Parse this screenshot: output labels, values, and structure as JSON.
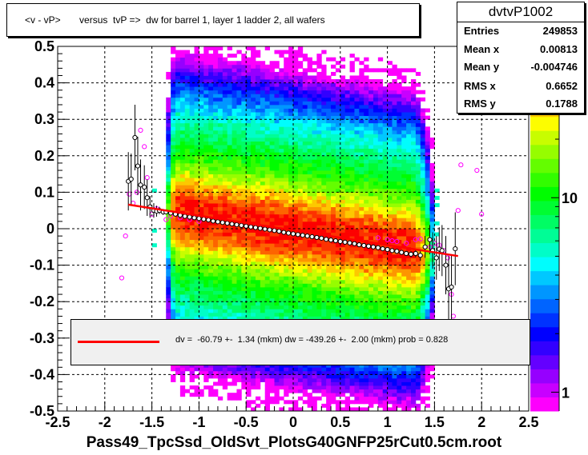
{
  "title": "<v - vP>       versus  tvP =>  dw for barrel 1, layer 1 ladder 2, all wafers",
  "stats": {
    "name": "dvtvP1002",
    "rows": [
      {
        "key": "Entries",
        "value": "249853"
      },
      {
        "key": "Mean x",
        "value": "0.00813"
      },
      {
        "key": "Mean y",
        "value": "-0.004746"
      },
      {
        "key": "RMS x",
        "value": "0.6652"
      },
      {
        "key": "RMS y",
        "value": "0.1788"
      }
    ]
  },
  "fit_legend": "dv =  -60.79 +-  1.34 (mkm) dw = -439.26 +-  2.00 (mkm) prob = 0.828",
  "xlabel": "Pass49_TpcSsd_OldSvt_PlotsG40GNFP25rCut0.5cm.root",
  "colors": {
    "fit_line": "#ff0000",
    "profile_black": "#000000",
    "profile_magenta": "#ff00ff"
  },
  "chart_data": {
    "type": "heatmap",
    "xlim": [
      -2.5,
      2.5
    ],
    "ylim": [
      -0.5,
      0.5
    ],
    "xticks": [
      "-2.5",
      "-2",
      "-1.5",
      "-1",
      "-0.5",
      "0",
      "0.5",
      "1",
      "1.5",
      "2",
      "2.5"
    ],
    "yticks": [
      "-0.5",
      "-0.4",
      "-0.3",
      "-0.2",
      "-0.1",
      "0",
      "0.1",
      "0.2",
      "0.3",
      "0.4",
      "0.5"
    ],
    "grid": true,
    "z_scale": "log",
    "z_ticks": [
      "1",
      "10"
    ],
    "z_range": [
      0.8,
      60
    ],
    "fit_line": {
      "x": [
        -1.75,
        1.75
      ],
      "y": [
        0.066,
        -0.075
      ]
    },
    "profile_black": {
      "x": [
        -1.75,
        -1.72,
        -1.68,
        -1.65,
        -1.62,
        -1.58,
        -1.55,
        -1.52,
        -1.48,
        -1.45,
        -1.42,
        -1.38,
        -1.35,
        -1.3,
        -1.25,
        -1.2,
        -1.15,
        -1.1,
        -1.05,
        -1.0,
        -0.95,
        -0.9,
        -0.85,
        -0.8,
        -0.75,
        -0.7,
        -0.65,
        -0.6,
        -0.55,
        -0.5,
        -0.45,
        -0.4,
        -0.35,
        -0.3,
        -0.25,
        -0.2,
        -0.15,
        -0.1,
        -0.05,
        0,
        0.05,
        0.1,
        0.15,
        0.2,
        0.25,
        0.3,
        0.35,
        0.4,
        0.45,
        0.5,
        0.55,
        0.6,
        0.65,
        0.7,
        0.75,
        0.8,
        0.85,
        0.9,
        0.95,
        1.0,
        1.05,
        1.1,
        1.15,
        1.2,
        1.25,
        1.3,
        1.35,
        1.4,
        1.45,
        1.48,
        1.52,
        1.55,
        1.58,
        1.62,
        1.65,
        1.68,
        1.72
      ],
      "y": [
        0.13,
        0.136,
        0.25,
        0.172,
        0.12,
        0.114,
        0.085,
        0.06,
        0.05,
        0.048,
        0.05,
        0.046,
        0.046,
        0.043,
        0.04,
        0.037,
        0.034,
        0.032,
        0.03,
        0.028,
        0.026,
        0.024,
        0.021,
        0.019,
        0.017,
        0.015,
        0.013,
        0.011,
        0.009,
        0.007,
        0.005,
        0.003,
        0.001,
        -0.001,
        -0.003,
        -0.005,
        -0.007,
        -0.01,
        -0.012,
        -0.014,
        -0.016,
        -0.018,
        -0.02,
        -0.022,
        -0.024,
        -0.026,
        -0.029,
        -0.031,
        -0.033,
        -0.035,
        -0.037,
        -0.039,
        -0.041,
        -0.044,
        -0.046,
        -0.048,
        -0.05,
        -0.052,
        -0.055,
        -0.057,
        -0.06,
        -0.062,
        -0.065,
        -0.068,
        -0.07,
        -0.068,
        -0.073,
        -0.05,
        -0.03,
        -0.06,
        -0.08,
        -0.056,
        -0.06,
        -0.1,
        -0.165,
        -0.16,
        -0.055
      ],
      "err": [
        0.08,
        0.07,
        0.09,
        0.08,
        0.07,
        0.06,
        0.05,
        0.03,
        0.02,
        0.015,
        0.01,
        0.008,
        0.006,
        0.004,
        0.003,
        0.003,
        0.003,
        0.003,
        0.002,
        0.002,
        0.002,
        0.002,
        0.002,
        0.002,
        0.002,
        0.002,
        0.002,
        0.002,
        0.002,
        0.002,
        0.002,
        0.002,
        0.002,
        0.002,
        0.002,
        0.002,
        0.002,
        0.002,
        0.002,
        0.002,
        0.002,
        0.002,
        0.002,
        0.002,
        0.002,
        0.002,
        0.002,
        0.002,
        0.002,
        0.002,
        0.002,
        0.002,
        0.002,
        0.002,
        0.002,
        0.002,
        0.002,
        0.003,
        0.003,
        0.003,
        0.003,
        0.004,
        0.005,
        0.006,
        0.008,
        0.01,
        0.015,
        0.03,
        0.04,
        0.05,
        0.06,
        0.06,
        0.07,
        0.08,
        0.09,
        0.09,
        0.1
      ]
    },
    "profile_magenta": {
      "x": [
        -1.82,
        -1.78,
        -1.74,
        -1.7,
        -1.66,
        -1.62,
        -1.58,
        -1.55,
        -1.5,
        -1.45,
        -1.35,
        -1.3,
        -1.2,
        -1.1,
        -1.0,
        0.9,
        1.0,
        1.05,
        1.1,
        1.2,
        1.3,
        1.35,
        1.45,
        1.5,
        1.55,
        1.6,
        1.64,
        1.68,
        1.7,
        1.75,
        1.78,
        1.95,
        2.0
      ],
      "y": [
        -0.135,
        -0.02,
        0.095,
        0.07,
        0.1,
        0.27,
        0.225,
        0.14,
        0.04,
        0.055,
        0.025,
        0.035,
        0.03,
        0.025,
        0.02,
        -0.025,
        -0.03,
        -0.033,
        -0.035,
        -0.04,
        -0.03,
        -0.028,
        -0.05,
        -0.04,
        -0.045,
        -0.06,
        -0.08,
        -0.18,
        -0.24,
        0.05,
        0.175,
        0.16,
        0.04
      ]
    }
  }
}
